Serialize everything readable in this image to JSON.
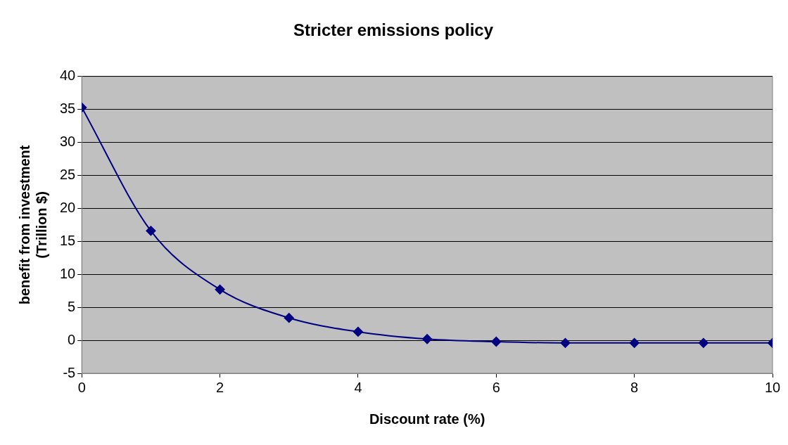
{
  "chart_data": {
    "type": "line",
    "title": "Stricter emissions policy",
    "xlabel": "Discount rate (%)",
    "ylabel": "benefit from investment\n(Trillion $)",
    "x": [
      0,
      1,
      2,
      3,
      4,
      5,
      6,
      7,
      8,
      9,
      10
    ],
    "series": [
      {
        "color": "#000080",
        "values": [
          35.3,
          16.6,
          7.7,
          3.4,
          1.3,
          0.2,
          -0.2,
          -0.4,
          -0.4,
          -0.4,
          -0.4
        ]
      }
    ],
    "xlim": [
      0,
      10
    ],
    "xticks": [
      0,
      2,
      4,
      6,
      8,
      10
    ],
    "ylim": [
      -5,
      40
    ],
    "yticks": [
      -5,
      0,
      5,
      10,
      15,
      20,
      25,
      30,
      35,
      40
    ],
    "grid": "y",
    "marker": "diamond",
    "line_style": "solid",
    "legend": false
  }
}
